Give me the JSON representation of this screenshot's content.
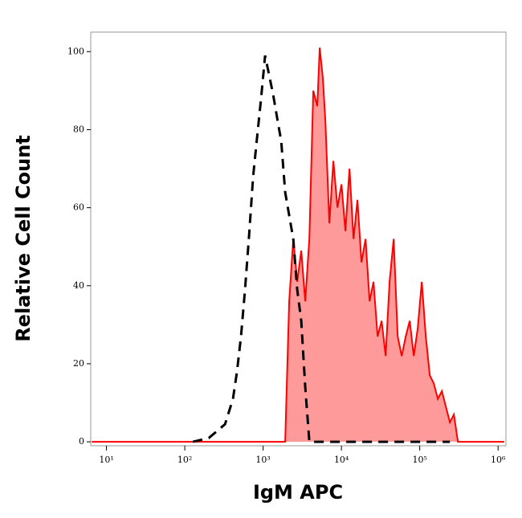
{
  "chart_data": {
    "type": "line",
    "x_label": "IgM APC",
    "y_label": "Relative Cell Count",
    "xscale": "log",
    "xlim": [
      6.3,
      1260000
    ],
    "xticks": [
      {
        "value": 10,
        "label": "10¹"
      },
      {
        "value": 100,
        "label": "10²"
      },
      {
        "value": 1000,
        "label": "10³"
      },
      {
        "value": 10000,
        "label": "10⁴"
      },
      {
        "value": 100000,
        "label": "10⁵"
      },
      {
        "value": 1000000,
        "label": "10⁶"
      }
    ],
    "ylim": [
      -1,
      105
    ],
    "yticks": [
      0,
      20,
      40,
      60,
      80,
      100
    ],
    "series": [
      {
        "color": "#000000",
        "line_style": "dashed",
        "x": [
          127,
          203,
          326,
          412,
          464,
          522,
          587,
          662,
          745,
          838,
          943,
          1061,
          1194,
          1343,
          1511,
          1702,
          1914,
          2153,
          2427,
          2729,
          3069,
          3451,
          3890,
          5546,
          58749,
          242661
        ],
        "values": [
          0,
          1,
          4.5,
          11,
          18,
          27,
          39,
          53,
          68,
          78,
          88,
          99,
          94,
          89,
          83,
          77,
          64,
          58,
          52,
          39,
          31,
          14,
          0,
          0,
          0,
          0
        ]
      },
      {
        "color": "#ff0000",
        "line_style": "solid",
        "fill": "#ff9a9a",
        "x": [
          6.5,
          1914,
          2153,
          2427,
          2729,
          3069,
          3451,
          3890,
          4375,
          4920,
          5284,
          5808,
          6237,
          7015,
          7889,
          8892,
          10000,
          11246,
          12677,
          14256,
          16032,
          18030,
          20324,
          22856,
          25704,
          28973,
          32584,
          36644,
          41210,
          46452,
          52240,
          58749,
          66222,
          74473,
          83753,
          94189,
          106170,
          119399,
          134276,
          151008,
          170215,
          191426,
          215278,
          242661,
          272898,
          306902,
          345144,
          1200000
        ],
        "values": [
          0,
          0,
          36,
          52,
          41,
          49,
          36,
          52,
          90,
          86,
          101,
          93,
          82,
          56,
          72,
          60,
          66,
          54,
          70,
          52,
          62,
          46,
          52,
          36,
          41,
          27,
          31,
          22,
          41,
          52,
          27,
          22,
          27,
          31,
          22,
          29,
          41,
          27,
          17,
          15,
          11,
          13,
          9,
          5,
          7,
          0,
          0,
          0
        ]
      }
    ]
  }
}
